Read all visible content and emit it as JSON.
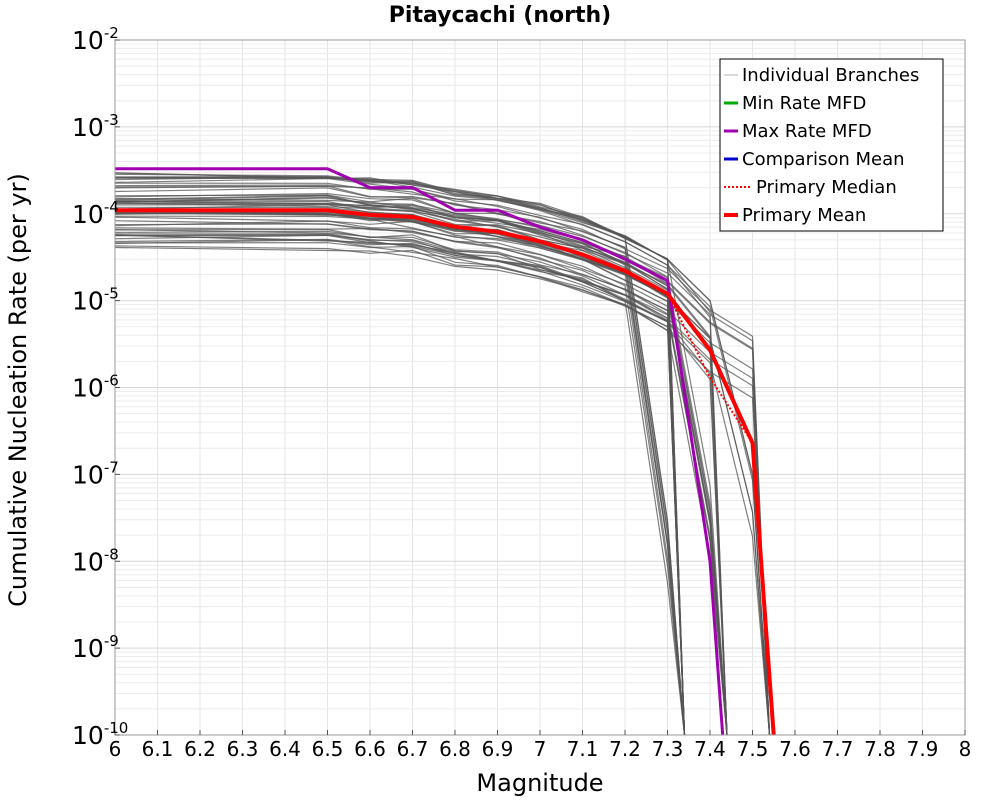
{
  "chart_data": {
    "type": "line",
    "title": "Pitaycachi (north)",
    "xlabel": "Magnitude",
    "ylabel": "Cumulative Nucleation Rate (per yr)",
    "xlim": [
      6,
      8
    ],
    "ylim": [
      1e-10,
      0.01
    ],
    "y_scale": "log",
    "grid": true,
    "legend_position": "top-right",
    "x_ticks": [
      "6",
      "6.1",
      "6.2",
      "6.3",
      "6.4",
      "6.5",
      "6.6",
      "6.7",
      "6.8",
      "6.9",
      "7",
      "7.1",
      "7.2",
      "7.3",
      "7.4",
      "7.5",
      "7.6",
      "7.7",
      "7.8",
      "7.9",
      "8"
    ],
    "y_ticks": [
      {
        "base": "10",
        "exp": "-2"
      },
      {
        "base": "10",
        "exp": "-3"
      },
      {
        "base": "10",
        "exp": "-4"
      },
      {
        "base": "10",
        "exp": "-5"
      },
      {
        "base": "10",
        "exp": "-6"
      },
      {
        "base": "10",
        "exp": "-7"
      },
      {
        "base": "10",
        "exp": "-8"
      },
      {
        "base": "10",
        "exp": "-9"
      },
      {
        "base": "10",
        "exp": "-10"
      }
    ],
    "legend": [
      {
        "label": "Individual Branches",
        "color": "#b0b0b0",
        "style": "thin"
      },
      {
        "label": "Min Rate MFD",
        "color": "#00aa00",
        "style": "solid"
      },
      {
        "label": "Max Rate MFD",
        "color": "#a000b0",
        "style": "solid"
      },
      {
        "label": "Comparison Mean",
        "color": "#0000cc",
        "style": "solid"
      },
      {
        "label": "Primary Median",
        "color": "#ff0000",
        "style": "dotted"
      },
      {
        "label": "Primary Mean",
        "color": "#ff0000",
        "style": "thick"
      }
    ],
    "branch_count": 60,
    "series": [
      {
        "name": "Max Rate MFD",
        "color": "#a000b0",
        "x": [
          6.0,
          6.5,
          6.6,
          6.7,
          6.8,
          6.9,
          7.0,
          7.1,
          7.2,
          7.3,
          7.4,
          7.43
        ],
        "y": [
          0.00033,
          0.00033,
          0.0002,
          0.0002,
          0.00011,
          0.00011,
          7e-05,
          5e-05,
          3e-05,
          1.7e-05,
          1e-08,
          1e-10
        ]
      },
      {
        "name": "Primary Median",
        "color": "#ff0000",
        "x": [
          6.0,
          6.5,
          6.6,
          6.7,
          6.8,
          6.9,
          7.0,
          7.1,
          7.2,
          7.3,
          7.4,
          7.5,
          7.55
        ],
        "y": [
          0.00011,
          0.00011,
          9.7e-05,
          9.2e-05,
          7.1e-05,
          6.2e-05,
          4.8e-05,
          3.4e-05,
          2.2e-05,
          1.2e-05,
          1.3e-06,
          2.3e-07,
          1e-10
        ]
      },
      {
        "name": "Primary Mean",
        "color": "#ff0000",
        "x": [
          6.0,
          6.5,
          6.6,
          6.7,
          6.8,
          6.9,
          7.0,
          7.1,
          7.2,
          7.3,
          7.4,
          7.5,
          7.55
        ],
        "y": [
          0.00011,
          0.00011,
          9.7e-05,
          9.2e-05,
          7.1e-05,
          6.2e-05,
          4.8e-05,
          3.4e-05,
          2.2e-05,
          1.2e-05,
          2.7e-06,
          2.3e-07,
          1e-10
        ]
      }
    ]
  }
}
